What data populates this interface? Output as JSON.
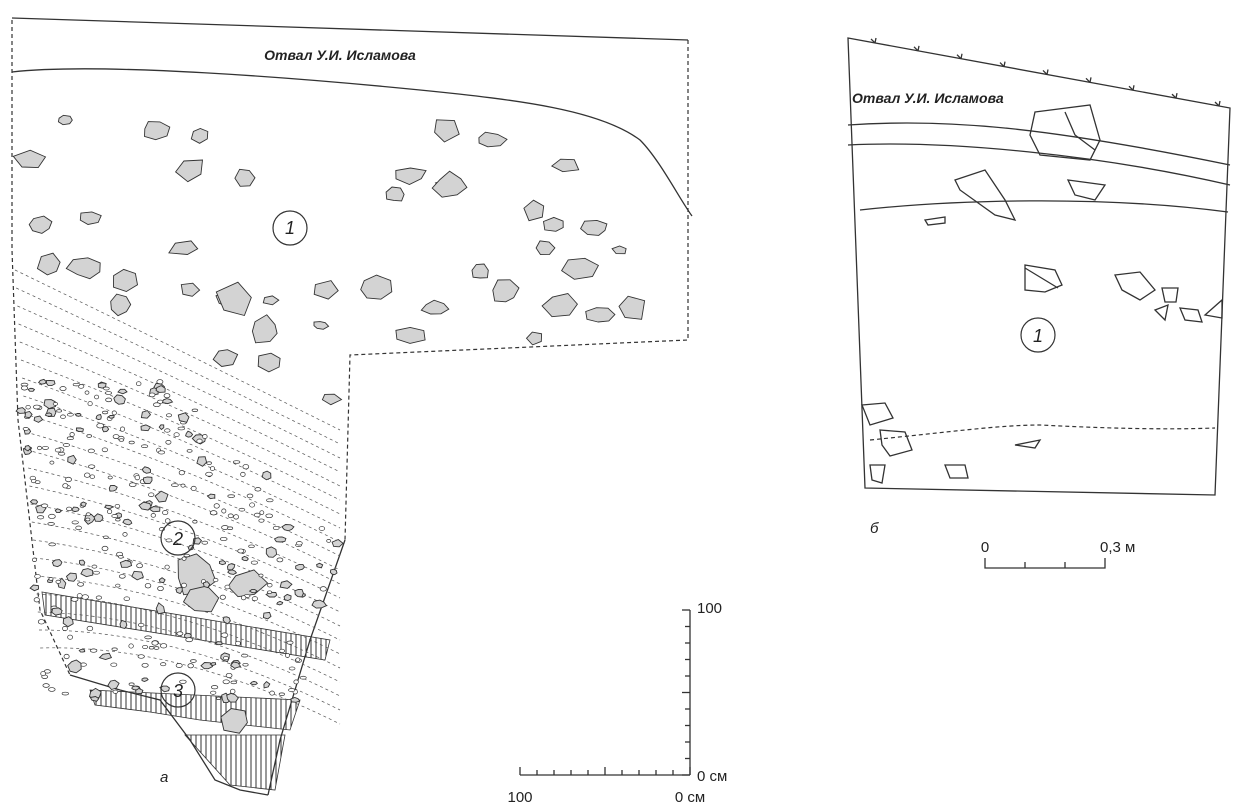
{
  "panel_a": {
    "label": "а",
    "dump_label": "Отвал У.И. Исламова",
    "layers": [
      "1",
      "2",
      "3"
    ],
    "scale": {
      "vertical_top": "100",
      "vertical_bottom": "0 см",
      "horizontal_left": "100",
      "horizontal_right": "0 см"
    }
  },
  "panel_b": {
    "label": "б",
    "dump_label": "Отвал У.И. Исламова",
    "layers": [
      "1"
    ],
    "scale": {
      "start": "0",
      "end": "0,3 м"
    }
  }
}
